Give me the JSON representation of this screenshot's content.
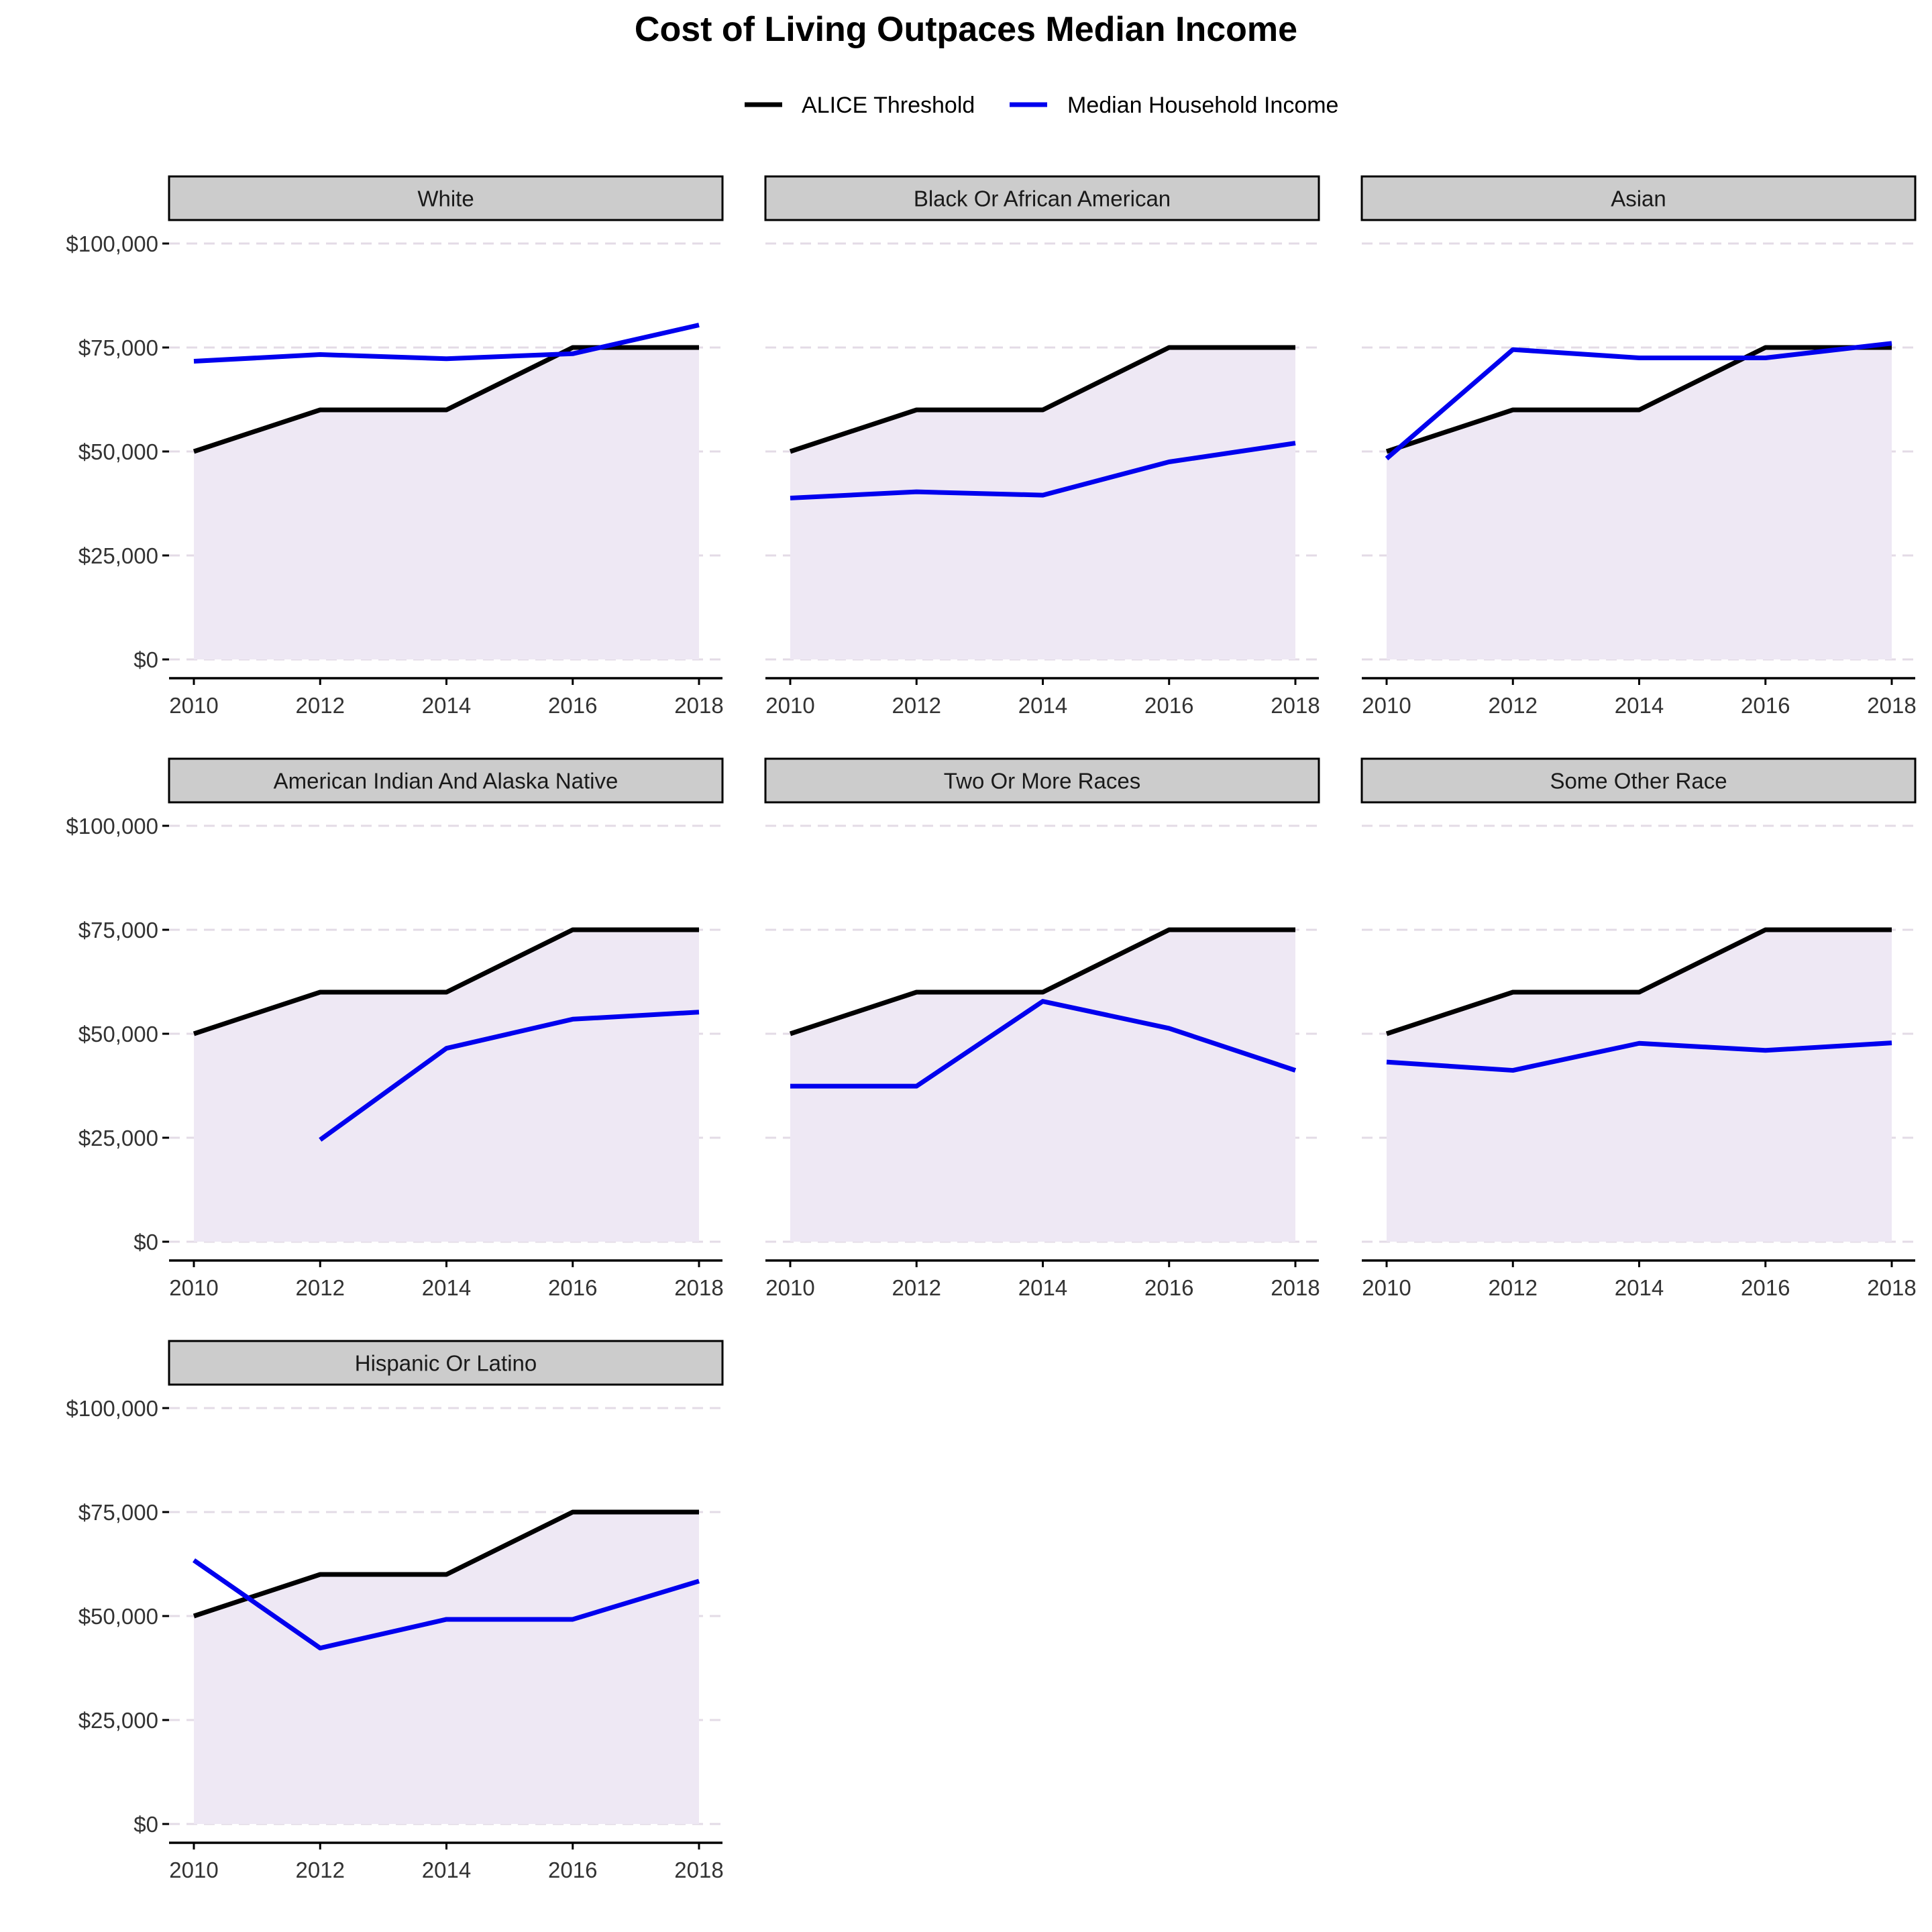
{
  "chart_data": {
    "type": "line",
    "title": "Cost of Living Outpaces Median Income",
    "legend_position": "top",
    "x": [
      2010,
      2012,
      2014,
      2016,
      2018
    ],
    "x_ticks": [
      "2010",
      "2012",
      "2014",
      "2016",
      "2018"
    ],
    "ylim": [
      0,
      110000
    ],
    "y_ticks": [
      0,
      25000,
      50000,
      75000,
      100000
    ],
    "y_tick_labels": [
      "$0",
      "$25,000",
      "$50,000",
      "$75,000",
      "$100,000"
    ],
    "grid": "horizontal dashed",
    "shaded_area": "under ALICE Threshold",
    "legend": [
      {
        "name": "ALICE Threshold",
        "color": "#000000"
      },
      {
        "name": "Median Household Income",
        "color": "#0000ee"
      }
    ],
    "panels": [
      {
        "name": "White",
        "series": [
          {
            "name": "ALICE Threshold",
            "values": [
              50000,
              60000,
              60000,
              75000,
              75000
            ]
          },
          {
            "name": "Median Household Income",
            "values": [
              71700,
              73300,
              72300,
              73500,
              80400
            ]
          }
        ]
      },
      {
        "name": "Black Or African American",
        "series": [
          {
            "name": "ALICE Threshold",
            "values": [
              50000,
              60000,
              60000,
              75000,
              75000
            ]
          },
          {
            "name": "Median Household Income",
            "values": [
              38800,
              40300,
              39500,
              47500,
              52000
            ]
          }
        ]
      },
      {
        "name": "Asian",
        "series": [
          {
            "name": "ALICE Threshold",
            "values": [
              50000,
              60000,
              60000,
              75000,
              75000
            ]
          },
          {
            "name": "Median Household Income",
            "values": [
              48300,
              74500,
              72500,
              72500,
              76000
            ]
          }
        ]
      },
      {
        "name": "American Indian And Alaska Native",
        "series": [
          {
            "name": "ALICE Threshold",
            "values": [
              50000,
              60000,
              60000,
              75000,
              75000
            ]
          },
          {
            "name": "Median Household Income",
            "values": [
              null,
              24500,
              46500,
              53500,
              55200
            ]
          }
        ]
      },
      {
        "name": "Two Or More Races",
        "series": [
          {
            "name": "ALICE Threshold",
            "values": [
              50000,
              60000,
              60000,
              75000,
              75000
            ]
          },
          {
            "name": "Median Household Income",
            "values": [
              37400,
              37400,
              57800,
              51300,
              41200
            ]
          }
        ]
      },
      {
        "name": "Some Other Race",
        "series": [
          {
            "name": "ALICE Threshold",
            "values": [
              50000,
              60000,
              60000,
              75000,
              75000
            ]
          },
          {
            "name": "Median Household Income",
            "values": [
              43200,
              41200,
              47700,
              46000,
              47800
            ]
          }
        ]
      },
      {
        "name": "Hispanic Or Latino",
        "series": [
          {
            "name": "ALICE Threshold",
            "values": [
              50000,
              60000,
              60000,
              75000,
              75000
            ]
          },
          {
            "name": "Median Household Income",
            "values": [
              63400,
              42300,
              49200,
              49200,
              58400
            ]
          }
        ]
      }
    ]
  }
}
